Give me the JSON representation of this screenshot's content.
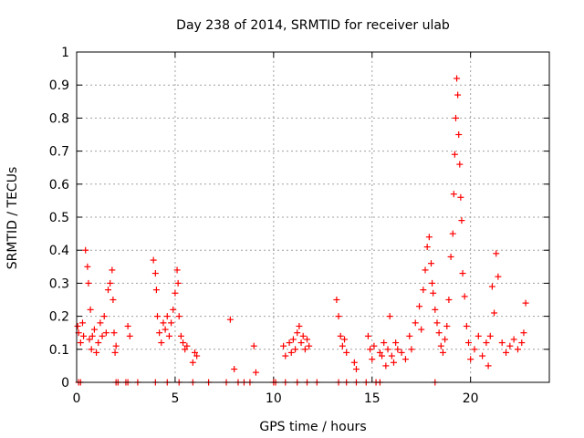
{
  "chart_data": {
    "type": "scatter",
    "title": "Day 238 of 2014, SRMTID for receiver ulab",
    "xlabel": "GPS time / hours",
    "ylabel": "SRMTID / TECUs",
    "xlim": [
      0,
      24
    ],
    "ylim": [
      0,
      1
    ],
    "xticks": [
      0,
      5,
      10,
      15,
      20
    ],
    "xtick_labels": [
      "0",
      "5",
      "10",
      "15",
      "20"
    ],
    "yticks": [
      0,
      0.1,
      0.2,
      0.3,
      0.4,
      0.5,
      0.6,
      0.7,
      0.8,
      0.9,
      1
    ],
    "ytick_labels": [
      "0",
      "0.1",
      "0.2",
      "0.3",
      "0.4",
      "0.5",
      "0.6",
      "0.7",
      "0.8",
      "0.9",
      "1"
    ],
    "grid": true,
    "marker": "+",
    "color": "#ff0000",
    "series": [
      {
        "name": "SRMTID",
        "x": [
          0.05,
          0.1,
          0.2,
          0.3,
          0.35,
          0.45,
          0.55,
          0.6,
          0.65,
          0.7,
          0.75,
          0.8,
          0.9,
          1.0,
          1.1,
          1.2,
          1.3,
          1.4,
          1.5,
          1.6,
          1.7,
          1.8,
          1.85,
          1.9,
          1.95,
          2.0,
          2.6,
          2.7,
          3.9,
          4.0,
          4.05,
          4.1,
          4.2,
          4.3,
          4.4,
          4.5,
          4.6,
          4.7,
          4.8,
          4.9,
          5.0,
          5.1,
          5.15,
          5.2,
          5.3,
          5.4,
          5.5,
          5.6,
          5.9,
          6.0,
          6.1,
          7.8,
          8.0,
          9.0,
          9.1,
          10.5,
          10.6,
          10.8,
          10.9,
          11.0,
          11.1,
          11.2,
          11.3,
          11.4,
          11.5,
          11.6,
          11.7,
          11.8,
          13.2,
          13.3,
          13.4,
          13.5,
          13.6,
          13.7,
          14.1,
          14.2,
          14.8,
          14.9,
          15.0,
          15.1,
          15.4,
          15.5,
          15.6,
          15.7,
          15.8,
          15.9,
          16.0,
          16.1,
          16.2,
          16.3,
          16.5,
          16.7,
          16.9,
          17.0,
          17.2,
          17.4,
          17.5,
          17.6,
          17.7,
          17.8,
          17.9,
          18.0,
          18.05,
          18.1,
          18.2,
          18.3,
          18.4,
          18.5,
          18.6,
          18.7,
          18.8,
          18.9,
          19.0,
          19.1,
          19.15,
          19.2,
          19.25,
          19.3,
          19.35,
          19.4,
          19.45,
          19.5,
          19.55,
          19.6,
          19.7,
          19.8,
          19.9,
          20.0,
          20.2,
          20.4,
          20.6,
          20.8,
          20.9,
          21.0,
          21.1,
          21.2,
          21.3,
          21.4,
          21.6,
          21.8,
          22.0,
          22.2,
          22.4,
          22.6,
          22.7,
          22.8,
          0.1,
          0.2,
          2.0,
          2.1,
          2.5,
          2.6,
          3.1,
          4.0,
          4.6,
          5.2,
          5.9,
          6.7,
          7.6,
          8.2,
          8.5,
          8.8,
          10.0,
          10.1,
          10.6,
          11.2,
          11.7,
          12.2,
          13.3,
          13.7,
          14.2,
          14.7,
          15.2,
          15.4,
          18.2
        ],
        "y": [
          0.17,
          0.15,
          0.12,
          0.18,
          0.14,
          0.4,
          0.35,
          0.3,
          0.13,
          0.22,
          0.1,
          0.14,
          0.16,
          0.09,
          0.12,
          0.18,
          0.14,
          0.2,
          0.15,
          0.28,
          0.3,
          0.34,
          0.25,
          0.15,
          0.09,
          0.11,
          0.17,
          0.14,
          0.37,
          0.33,
          0.28,
          0.2,
          0.15,
          0.12,
          0.18,
          0.16,
          0.2,
          0.14,
          0.18,
          0.22,
          0.27,
          0.34,
          0.3,
          0.2,
          0.14,
          0.12,
          0.1,
          0.11,
          0.06,
          0.09,
          0.08,
          0.19,
          0.04,
          0.11,
          0.03,
          0.11,
          0.08,
          0.12,
          0.09,
          0.13,
          0.1,
          0.15,
          0.17,
          0.12,
          0.14,
          0.1,
          0.13,
          0.11,
          0.25,
          0.2,
          0.14,
          0.11,
          0.13,
          0.09,
          0.06,
          0.04,
          0.14,
          0.1,
          0.07,
          0.11,
          0.09,
          0.08,
          0.12,
          0.05,
          0.1,
          0.2,
          0.08,
          0.06,
          0.12,
          0.1,
          0.09,
          0.07,
          0.14,
          0.1,
          0.18,
          0.23,
          0.16,
          0.28,
          0.34,
          0.41,
          0.44,
          0.36,
          0.3,
          0.27,
          0.22,
          0.18,
          0.15,
          0.11,
          0.09,
          0.13,
          0.17,
          0.25,
          0.38,
          0.45,
          0.57,
          0.69,
          0.8,
          0.92,
          0.87,
          0.75,
          0.66,
          0.56,
          0.49,
          0.33,
          0.26,
          0.17,
          0.12,
          0.07,
          0.1,
          0.14,
          0.08,
          0.12,
          0.05,
          0.14,
          0.29,
          0.21,
          0.39,
          0.32,
          0.12,
          0.09,
          0.11,
          0.13,
          0.1,
          0.12,
          0.15,
          0.24,
          0,
          0,
          0,
          0,
          0,
          0,
          0,
          0,
          0,
          0,
          0,
          0,
          0,
          0,
          0,
          0,
          0,
          0,
          0,
          0,
          0,
          0,
          0,
          0,
          0,
          0,
          0,
          0,
          0
        ]
      }
    ]
  }
}
